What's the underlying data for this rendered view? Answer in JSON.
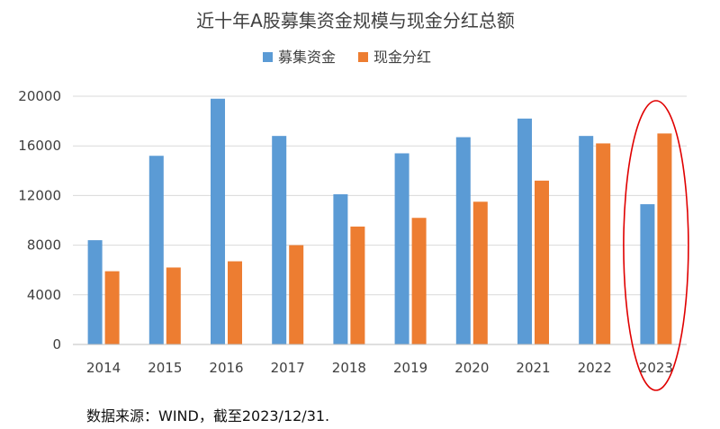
{
  "chart_data": {
    "type": "bar",
    "title": "近十年A股募集资金规模与现金分红总额",
    "categories": [
      "2014",
      "2015",
      "2016",
      "2017",
      "2018",
      "2019",
      "2020",
      "2021",
      "2022",
      "2023"
    ],
    "series": [
      {
        "name": "募集资金",
        "color": "#5B9BD5",
        "values": [
          8400,
          15200,
          19800,
          16800,
          12100,
          15400,
          16700,
          18200,
          16800,
          11300
        ]
      },
      {
        "name": "现金分红",
        "color": "#ED7D31",
        "values": [
          5900,
          6200,
          6700,
          8000,
          9500,
          10200,
          11500,
          13200,
          16200,
          17000
        ]
      }
    ],
    "ylim": [
      0,
      20000
    ],
    "yticks": [
      "0",
      "4000",
      "8000",
      "12000",
      "16000",
      "20000"
    ],
    "xlabel": "",
    "ylabel": "",
    "grid": true,
    "legend_position": "top-center",
    "highlight": {
      "category": "2023",
      "shape": "ellipse",
      "color": "#E00000"
    }
  },
  "source_note": "数据来源：WIND，截至2023/12/31."
}
